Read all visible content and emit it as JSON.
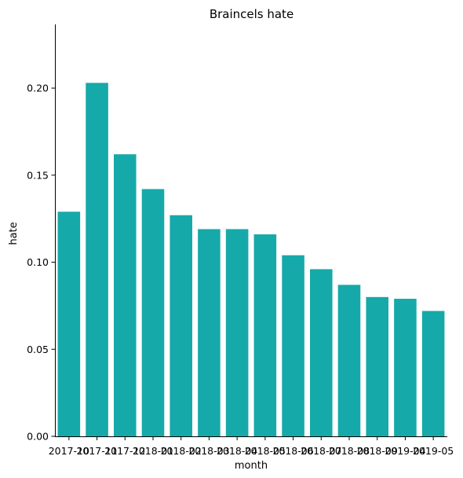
{
  "chart_data": {
    "type": "bar",
    "title": "Braincels hate",
    "xlabel": "month",
    "ylabel": "hate",
    "categories": [
      "2017-10",
      "2017-11",
      "2017-12",
      "2018-01",
      "2018-02",
      "2018-03",
      "2018-04",
      "2018-05",
      "2018-06",
      "2018-07",
      "2018-08",
      "2018-09",
      "2019-04",
      "2019-05"
    ],
    "values": [
      0.129,
      0.203,
      0.162,
      0.142,
      0.127,
      0.119,
      0.119,
      0.116,
      0.104,
      0.096,
      0.087,
      0.08,
      0.079,
      0.072
    ],
    "ylim": [
      0,
      0.2366
    ],
    "yticks": [
      0.0,
      0.05,
      0.1,
      0.15,
      0.2
    ],
    "ytick_labels": [
      "0.00",
      "0.05",
      "0.10",
      "0.15",
      "0.20"
    ],
    "bar_color": "#16a9a9",
    "grid": false,
    "legend": "none"
  }
}
